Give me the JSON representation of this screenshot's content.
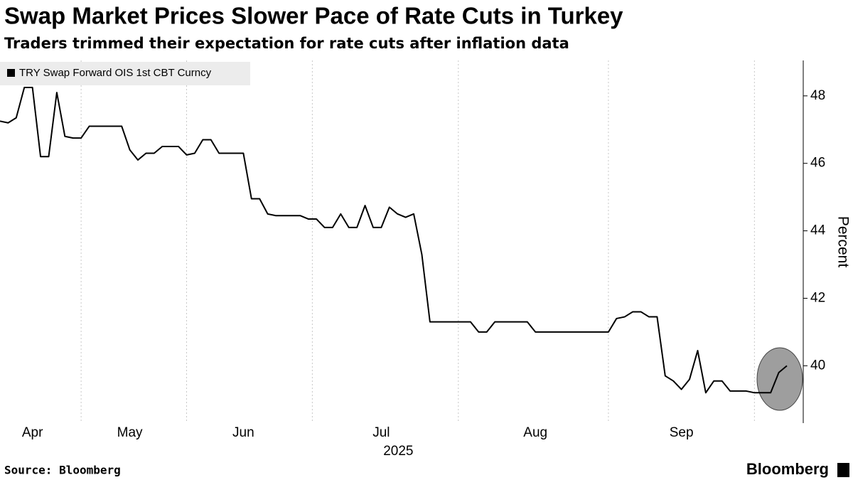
{
  "chart_data": {
    "type": "line",
    "title": "Swap Market Prices Slower Pace of Rate Cuts in Turkey",
    "subtitle": "Traders trimmed their expectation for rate cuts after inflation data",
    "y_label": "Percent",
    "year_label": "2025",
    "source": "Source: Bloomberg",
    "brand": "Bloomberg",
    "categories": [
      null,
      null,
      null,
      null,
      "Apr",
      null,
      null,
      null,
      null,
      null,
      null,
      null,
      null,
      null,
      null,
      null,
      "May",
      null,
      null,
      null,
      null,
      null,
      null,
      null,
      null,
      null,
      null,
      null,
      null,
      null,
      "Jun",
      null,
      null,
      null,
      null,
      null,
      null,
      null,
      null,
      null,
      null,
      null,
      null,
      null,
      null,
      null,
      null,
      "Jul",
      null,
      null,
      null,
      null,
      null,
      null,
      null,
      null,
      null,
      null,
      null,
      null,
      null,
      null,
      null,
      null,
      null,
      null,
      "Aug",
      null,
      null,
      null,
      null,
      null,
      null,
      null,
      null,
      null,
      null,
      null,
      null,
      null,
      null,
      null,
      null,
      null,
      "Sep",
      null,
      null,
      null,
      null,
      null,
      null,
      null,
      null,
      null,
      null,
      null,
      null,
      null
    ],
    "series": [
      {
        "name": "TRY Swap Forward OIS 1st CBT Curncy",
        "color": "#000000",
        "values": [
          47.25,
          47.2,
          47.35,
          48.25,
          48.25,
          46.2,
          46.2,
          48.1,
          46.8,
          46.75,
          46.75,
          47.1,
          47.1,
          47.1,
          47.1,
          47.1,
          46.4,
          46.1,
          46.3,
          46.3,
          46.5,
          46.5,
          46.5,
          46.25,
          46.3,
          46.7,
          46.7,
          46.3,
          46.3,
          46.3,
          46.3,
          44.95,
          44.95,
          44.5,
          44.45,
          44.45,
          44.45,
          44.45,
          44.35,
          44.35,
          44.1,
          44.1,
          44.5,
          44.1,
          44.1,
          44.75,
          44.1,
          44.1,
          44.7,
          44.5,
          44.4,
          44.5,
          43.3,
          41.3,
          41.3,
          41.3,
          41.3,
          41.3,
          41.3,
          41.0,
          41.0,
          41.3,
          41.3,
          41.3,
          41.3,
          41.3,
          41.0,
          41.0,
          41.0,
          41.0,
          41.0,
          41.0,
          41.0,
          41.0,
          41.0,
          41.0,
          41.4,
          41.45,
          41.6,
          41.6,
          41.45,
          41.45,
          39.7,
          39.55,
          39.3,
          39.6,
          40.45,
          39.2,
          39.55,
          39.55,
          39.25,
          39.25,
          39.25,
          39.2,
          39.2,
          39.2,
          39.8,
          40.0
        ]
      }
    ],
    "ylim": [
      38.3,
      49.05
    ],
    "yticks": [
      40,
      42,
      44,
      46,
      48
    ]
  }
}
